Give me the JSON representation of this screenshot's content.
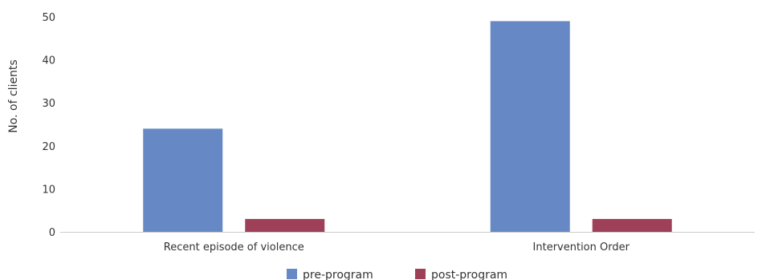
{
  "chart_data": {
    "type": "bar",
    "title": "",
    "xlabel": "",
    "ylabel": "No. of clients",
    "ylim": [
      0,
      50
    ],
    "yticks": [
      0,
      10,
      20,
      30,
      40,
      50
    ],
    "grid": false,
    "legend_position": "bottom",
    "categories": [
      "Recent episode of violence",
      "Intervention Order"
    ],
    "series": [
      {
        "name": "pre-program",
        "color": "#6689c6",
        "values": [
          24,
          49
        ]
      },
      {
        "name": "post-program",
        "color": "#9e4158",
        "values": [
          3,
          3
        ]
      }
    ]
  }
}
